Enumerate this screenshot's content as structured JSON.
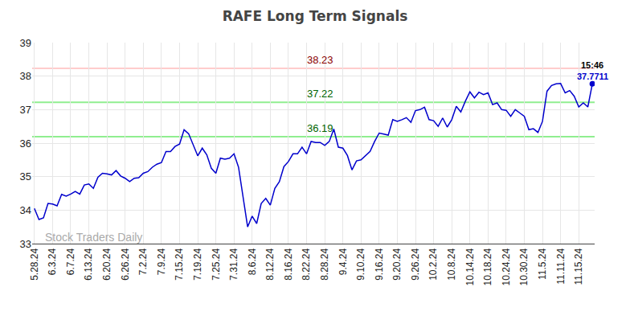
{
  "chart_data": {
    "type": "line",
    "title": "RAFE Long Term Signals",
    "categories": [
      "5.28.24",
      null,
      null,
      null,
      "6.3.24",
      null,
      null,
      null,
      "6.7.24",
      null,
      null,
      null,
      "6.13.24",
      null,
      null,
      null,
      "6.20.24",
      null,
      null,
      null,
      "6.26.24",
      null,
      null,
      null,
      "7.2.24",
      null,
      null,
      null,
      "7.9.24",
      null,
      null,
      null,
      "7.15.24",
      null,
      null,
      null,
      "7.19.24",
      null,
      null,
      null,
      "7.25.24",
      null,
      null,
      null,
      "7.31.24",
      null,
      null,
      null,
      "8.6.24",
      null,
      null,
      null,
      "8.12.24",
      null,
      null,
      null,
      "8.16.24",
      null,
      null,
      null,
      "8.22.24",
      null,
      null,
      null,
      "8.28.24",
      null,
      null,
      null,
      "9.4.24",
      null,
      null,
      null,
      "9.10.24",
      null,
      null,
      null,
      "9.16.24",
      null,
      null,
      null,
      "9.20.24",
      null,
      null,
      null,
      "9.26.24",
      null,
      null,
      null,
      "10.2.24",
      null,
      null,
      null,
      "10.8.24",
      null,
      null,
      null,
      "10.14.24",
      null,
      null,
      null,
      "10.18.24",
      null,
      null,
      null,
      "10.24.24",
      null,
      null,
      null,
      "10.30.24",
      null,
      null,
      null,
      "11.5.24",
      null,
      null,
      null,
      "11.11.24",
      null,
      null,
      null,
      "11.15.24",
      null,
      null,
      null
    ],
    "values": [
      34.05,
      33.72,
      33.77,
      34.2,
      34.18,
      34.13,
      34.47,
      34.42,
      34.48,
      34.56,
      34.48,
      34.75,
      34.78,
      34.65,
      34.98,
      35.1,
      35.08,
      35.05,
      35.18,
      35.02,
      34.95,
      34.85,
      34.95,
      34.97,
      35.1,
      35.15,
      35.28,
      35.37,
      35.42,
      35.75,
      35.75,
      35.9,
      35.97,
      36.4,
      36.28,
      35.95,
      35.62,
      35.85,
      35.65,
      35.25,
      35.1,
      35.55,
      35.52,
      35.55,
      35.68,
      35.28,
      34.4,
      33.5,
      33.82,
      33.6,
      34.2,
      34.35,
      34.15,
      34.65,
      34.85,
      35.3,
      35.45,
      35.68,
      35.68,
      35.88,
      35.68,
      36.05,
      36.02,
      36.02,
      35.93,
      36.05,
      36.42,
      35.88,
      35.85,
      35.63,
      35.2,
      35.47,
      35.5,
      35.62,
      35.75,
      36.05,
      36.3,
      36.27,
      36.24,
      36.7,
      36.65,
      36.7,
      36.76,
      36.62,
      36.97,
      37.0,
      37.07,
      36.7,
      36.67,
      36.5,
      36.75,
      36.48,
      36.7,
      37.1,
      36.93,
      37.25,
      37.53,
      37.35,
      37.52,
      37.45,
      37.5,
      37.15,
      37.2,
      37.0,
      36.98,
      36.8,
      37.0,
      36.9,
      36.8,
      36.4,
      36.43,
      36.32,
      36.65,
      37.55,
      37.72,
      37.77,
      37.78,
      37.5,
      37.57,
      37.4,
      37.08,
      37.2,
      37.08,
      37.7711
    ],
    "color": "#0000cc",
    "ylim": [
      33,
      39
    ],
    "yticks": [
      33,
      34,
      35,
      36,
      37,
      38,
      39
    ],
    "grid": true,
    "reference_lines": [
      {
        "value": 38.23,
        "color": "#ffcccc",
        "label_color": "#8b0000"
      },
      {
        "value": 37.22,
        "color": "#90ee90",
        "label_color": "#006400"
      },
      {
        "value": 36.19,
        "color": "#90ee90",
        "label_color": "#006400"
      }
    ],
    "last_point": {
      "time": "15:46",
      "color": "#0000cc"
    },
    "watermark": "Stock Traders Daily"
  }
}
